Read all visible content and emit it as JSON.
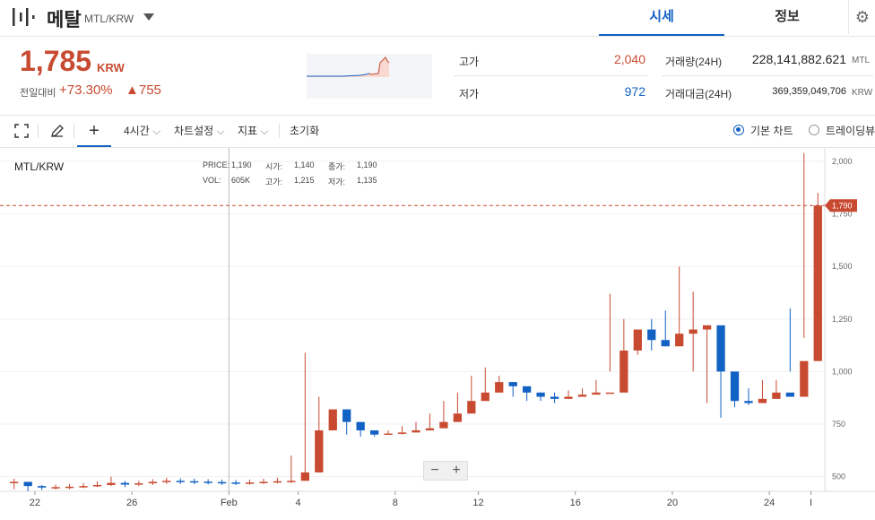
{
  "header": {
    "coin_name": "메탈",
    "pair": "MTL/KRW",
    "tabs": [
      {
        "label": "시세"
      },
      {
        "label": "정보"
      }
    ]
  },
  "summary": {
    "price": "1,785",
    "unit": "KRW",
    "change_label": "전일대비",
    "change_rate": "+73.30%",
    "change_amount": "▲755",
    "high_label": "고가",
    "high_value": "2,040",
    "low_label": "저가",
    "low_value": "972",
    "volume_label": "거래량(24H)",
    "volume_value": "228,141,882.621",
    "volume_unit": "MTL",
    "amount_label": "거래대금(24H)",
    "amount_value": "369,359,049,706",
    "amount_unit": "KRW"
  },
  "toolbar": {
    "interval": "4시간",
    "chart_settings": "차트설정",
    "indicators": "지표",
    "reset": "초기화",
    "basic_chart": "기본 차트",
    "trading_view": "트레이딩뷰"
  },
  "legend": {
    "pair": "MTL/KRW",
    "price_label": "PRICE:",
    "price_value": "1,190",
    "open_label": "시가:",
    "open_value": "1,140",
    "close_label": "종가:",
    "close_value": "1,190",
    "vol_label": "VOL:",
    "vol_value": "605K",
    "high_label": "고가:",
    "high_value": "1,215",
    "low_label": "저가:",
    "low_value": "1,135"
  },
  "colors": {
    "up": "#c84a31",
    "down": "#1261c4",
    "accent": "#1261c4"
  },
  "icons": [
    "metal-logo",
    "chevron-down-icon",
    "gear-icon",
    "fullscreen-icon",
    "pencil-icon",
    "crosshair-icon",
    "minus-icon",
    "plus-icon"
  ],
  "chart_data": {
    "type": "candlestick",
    "pair": "MTL/KRW",
    "x_ticks": [
      "22",
      "26",
      "Feb",
      "4",
      "8",
      "12",
      "16",
      "20",
      "24",
      "I"
    ],
    "y_ticks": [
      500,
      750,
      1000,
      1250,
      1500,
      1750,
      2000
    ],
    "y_tick_labels": [
      "500",
      "750",
      "1,000",
      "1,250",
      "1,500",
      "1,750",
      "2,000"
    ],
    "ylim": [
      430,
      2030
    ],
    "current_price": 1790,
    "current_price_label": "1,790",
    "series_close": [
      475,
      455,
      448,
      450,
      452,
      455,
      460,
      470,
      462,
      468,
      475,
      480,
      478,
      476,
      474,
      472,
      470,
      472,
      475,
      478,
      480,
      520,
      720,
      820,
      760,
      720,
      700,
      705,
      710,
      720,
      730,
      760,
      800,
      860,
      900,
      950,
      930,
      900,
      880,
      870,
      880,
      890,
      900,
      900,
      1100,
      1200,
      1150,
      1120,
      1180,
      1200,
      1220,
      1000,
      860,
      850,
      870,
      900,
      880,
      1050,
      1790
    ],
    "series_high": [
      490,
      470,
      460,
      462,
      465,
      470,
      478,
      500,
      480,
      480,
      488,
      495,
      492,
      490,
      488,
      486,
      484,
      486,
      490,
      495,
      600,
      1090,
      880,
      800,
      760,
      740,
      720,
      720,
      740,
      760,
      800,
      860,
      900,
      980,
      1020,
      980,
      950,
      920,
      900,
      900,
      910,
      920,
      960,
      1370,
      1250,
      1200,
      1250,
      1290,
      1500,
      1380,
      1220,
      1000,
      900,
      920,
      960,
      960,
      1300,
      2040,
      1850
    ],
    "series_low": [
      440,
      430,
      436,
      438,
      440,
      445,
      450,
      455,
      450,
      455,
      460,
      465,
      465,
      464,
      462,
      460,
      460,
      462,
      465,
      468,
      470,
      500,
      700,
      720,
      700,
      690,
      690,
      700,
      700,
      710,
      720,
      740,
      780,
      840,
      880,
      900,
      880,
      860,
      860,
      850,
      870,
      880,
      900,
      1000,
      1100,
      1080,
      1100,
      1150,
      1150,
      1000,
      850,
      780,
      830,
      840,
      860,
      870,
      1000,
      1160,
      1700
    ]
  }
}
